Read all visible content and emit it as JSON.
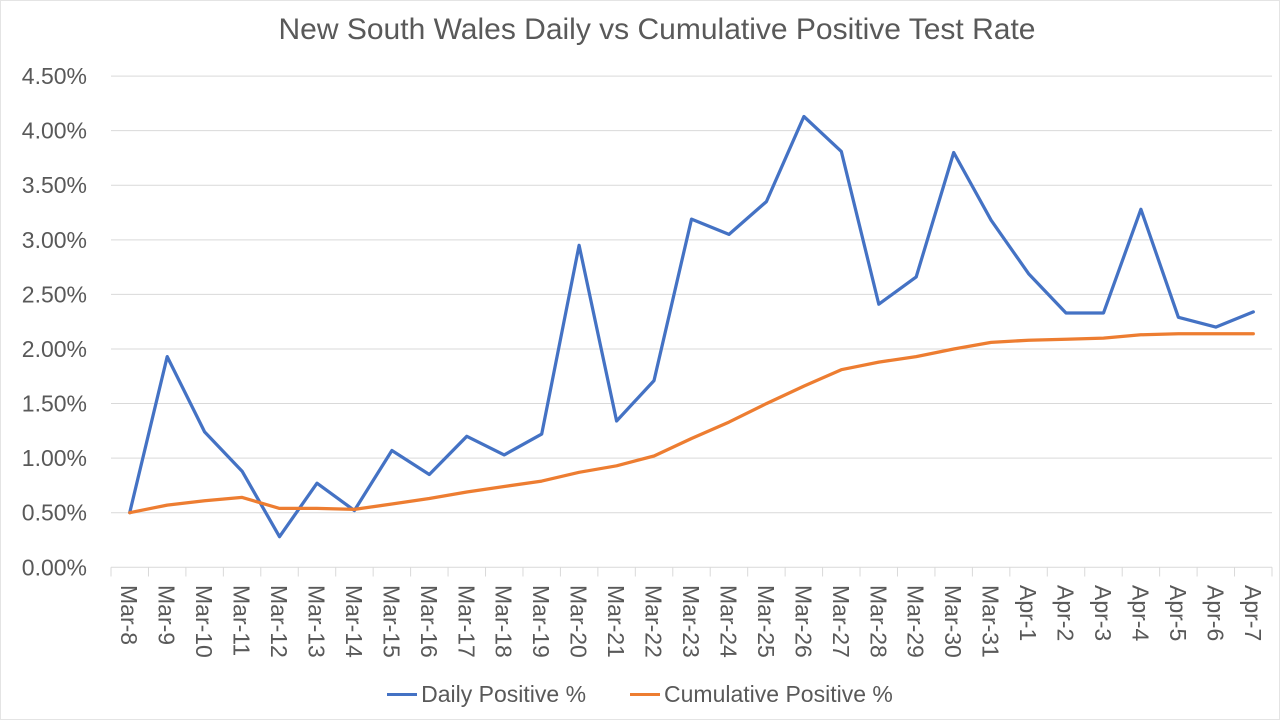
{
  "chart_data": {
    "type": "line",
    "title": "New South Wales Daily vs Cumulative Positive Test Rate",
    "categories": [
      "Mar-8",
      "Mar-9",
      "Mar-10",
      "Mar-11",
      "Mar-12",
      "Mar-13",
      "Mar-14",
      "Mar-15",
      "Mar-16",
      "Mar-17",
      "Mar-18",
      "Mar-19",
      "Mar-20",
      "Mar-21",
      "Mar-22",
      "Mar-23",
      "Mar-24",
      "Mar-25",
      "Mar-26",
      "Mar-27",
      "Mar-28",
      "Mar-29",
      "Mar-30",
      "Mar-31",
      "Apr-1",
      "Apr-2",
      "Apr-3",
      "Apr-4",
      "Apr-5",
      "Apr-6",
      "Apr-7"
    ],
    "series": [
      {
        "name": "Daily Positive %",
        "color": "#4472C4",
        "values": [
          0.5,
          1.93,
          1.24,
          0.88,
          0.28,
          0.77,
          0.52,
          1.07,
          0.85,
          1.2,
          1.03,
          1.22,
          2.95,
          1.34,
          1.71,
          3.19,
          3.05,
          3.35,
          4.13,
          3.81,
          2.41,
          2.66,
          3.8,
          3.18,
          2.69,
          2.33,
          2.33,
          3.28,
          2.29,
          2.2,
          2.34
        ]
      },
      {
        "name": "Cumulative Positive %",
        "color": "#ED7D31",
        "values": [
          0.5,
          0.57,
          0.61,
          0.64,
          0.54,
          0.54,
          0.53,
          0.58,
          0.63,
          0.69,
          0.74,
          0.79,
          0.87,
          0.93,
          1.02,
          1.18,
          1.33,
          1.5,
          1.66,
          1.81,
          1.88,
          1.93,
          2.0,
          2.06,
          2.08,
          2.09,
          2.1,
          2.13,
          2.14,
          2.14,
          2.14
        ]
      }
    ],
    "y_axis": {
      "min": 0,
      "max": 4.5,
      "step": 0.5,
      "tick_labels": [
        "0.00%",
        "0.50%",
        "1.00%",
        "1.50%",
        "2.00%",
        "2.50%",
        "3.00%",
        "3.50%",
        "4.00%",
        "4.50%"
      ]
    },
    "grid": true,
    "legend_position": "bottom",
    "colors": {
      "grid": "#D9D9D9",
      "text": "#595959",
      "background": "#FFFFFF"
    }
  }
}
